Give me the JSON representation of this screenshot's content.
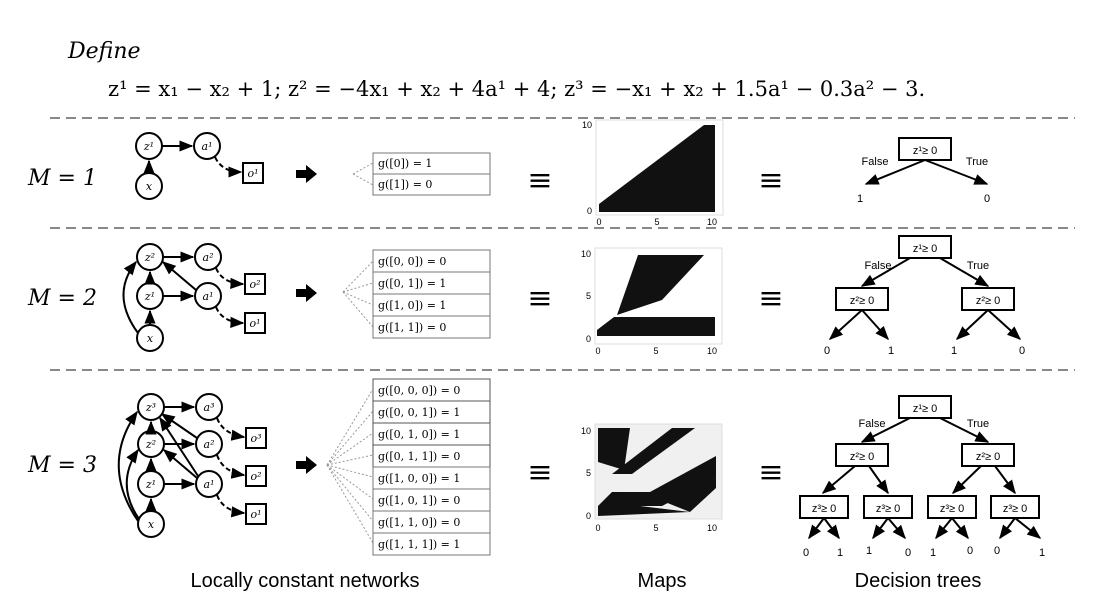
{
  "define_label": "Define",
  "equation": "z¹ = x₁ − x₂ + 1;  z² = −4x₁ + x₂ + 4a¹ + 4; z³ = −x₁ + x₂ + 1.5a¹ − 0.3a² − 3.",
  "rows": [
    {
      "label": "M = 1",
      "network_nodes": [
        "z¹",
        "x",
        "a¹",
        "o¹"
      ],
      "table": [
        "g([0]) = 1",
        "g([1]) = 0"
      ],
      "map_ticks_x": [
        "0",
        "5",
        "10"
      ],
      "map_ticks_y": [
        "10",
        "0"
      ],
      "tree": {
        "root": "z¹≥ 0",
        "false_label": "False",
        "true_label": "True",
        "leaves": [
          "1",
          "0"
        ]
      }
    },
    {
      "label": "M = 2",
      "network_nodes": [
        "z²",
        "z¹",
        "x",
        "a²",
        "a¹",
        "o²",
        "o¹"
      ],
      "table": [
        "g([0, 0]) = 0",
        "g([0, 1]) = 1",
        "g([1, 0]) = 1",
        "g([1, 1]) = 0"
      ],
      "map_ticks_x": [
        "0",
        "5",
        "10"
      ],
      "map_ticks_y": [
        "10",
        "5",
        "0"
      ],
      "tree": {
        "root": "z¹≥ 0",
        "false_label": "False",
        "true_label": "True",
        "level2": [
          "z²≥ 0",
          "z²≥ 0"
        ],
        "leaves": [
          "0",
          "1",
          "1",
          "0"
        ]
      }
    },
    {
      "label": "M = 3",
      "network_nodes": [
        "z³",
        "z²",
        "z¹",
        "x",
        "a³",
        "a²",
        "a¹",
        "o³",
        "o²",
        "o¹"
      ],
      "table": [
        "g([0, 0, 0]) = 0",
        "g([0, 0, 1]) = 1",
        "g([0, 1, 0]) = 1",
        "g([0, 1, 1]) = 0",
        "g([1, 0, 0]) = 1",
        "g([1, 0, 1]) = 0",
        "g([1, 1, 0]) = 0",
        "g([1, 1, 1]) = 1"
      ],
      "map_ticks_x": [
        "0",
        "5",
        "10"
      ],
      "map_ticks_y": [
        "10",
        "5",
        "0"
      ],
      "tree": {
        "root": "z¹≥ 0",
        "false_label": "False",
        "true_label": "True",
        "level2": [
          "z²≥ 0",
          "z²≥ 0"
        ],
        "level3": [
          "z³≥ 0",
          "z³≥ 0",
          "z³≥ 0",
          "z³≥ 0"
        ],
        "leaves": [
          "0",
          "1",
          "1",
          "0",
          "1",
          "0",
          "0",
          "1"
        ]
      }
    }
  ],
  "equiv_symbol": "≡",
  "captions": {
    "networks": "Locally constant networks",
    "maps": "Maps",
    "trees": "Decision trees"
  }
}
